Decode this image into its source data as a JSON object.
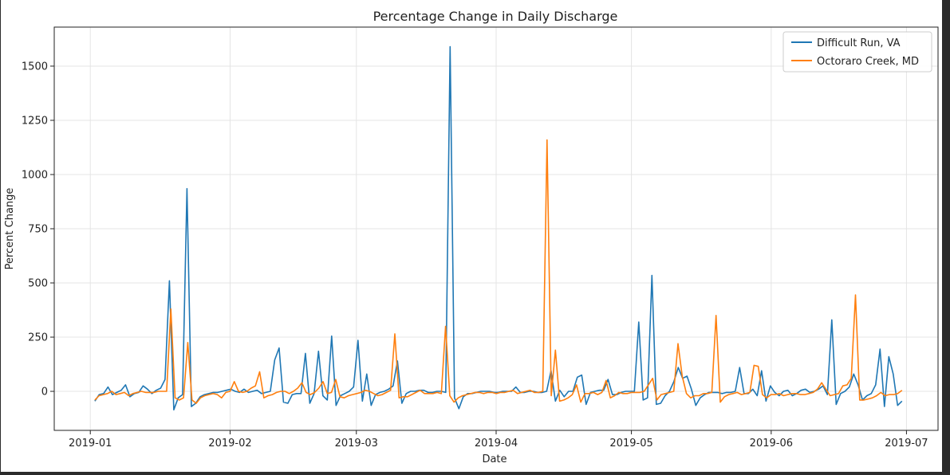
{
  "chart_data": {
    "type": "line",
    "title": "Percentage Change in Daily Discharge",
    "xlabel": "Date",
    "ylabel": "Percent Change",
    "x_start": "2019-01-02",
    "x_end": "2019-06-30",
    "xlim": [
      "2018-12-24",
      "2019-07-08"
    ],
    "ylim": [
      -180,
      1680
    ],
    "xticks": [
      "2019-01",
      "2019-02",
      "2019-03",
      "2019-04",
      "2019-05",
      "2019-06",
      "2019-07"
    ],
    "yticks": [
      0,
      250,
      500,
      750,
      1000,
      1250,
      1500
    ],
    "grid": true,
    "legend_position": "top-right",
    "series": [
      {
        "name": "Difficult Run, VA",
        "color": "#1f77b4",
        "values": [
          -45,
          -15,
          -10,
          20,
          -15,
          -5,
          5,
          30,
          -25,
          -10,
          -5,
          25,
          10,
          -10,
          5,
          15,
          55,
          510,
          -85,
          -30,
          -15,
          935,
          -70,
          -55,
          -25,
          -15,
          -10,
          -5,
          -5,
          0,
          5,
          10,
          0,
          -5,
          10,
          -5,
          0,
          5,
          -10,
          -5,
          0,
          145,
          200,
          -50,
          -55,
          -15,
          -10,
          -10,
          175,
          -55,
          -10,
          185,
          -20,
          -40,
          255,
          -65,
          -20,
          -10,
          0,
          20,
          235,
          -45,
          80,
          -65,
          -15,
          -5,
          0,
          10,
          25,
          140,
          -55,
          -10,
          0,
          0,
          5,
          5,
          -5,
          -5,
          0,
          0,
          -5,
          1590,
          -30,
          -80,
          -25,
          -10,
          -10,
          -5,
          0,
          0,
          0,
          -5,
          -5,
          0,
          0,
          0,
          20,
          -5,
          -5,
          0,
          0,
          -5,
          -5,
          0,
          95,
          -45,
          5,
          -25,
          0,
          0,
          65,
          75,
          -60,
          -5,
          0,
          5,
          5,
          55,
          -15,
          -15,
          -5,
          0,
          0,
          0,
          320,
          -40,
          -30,
          535,
          -60,
          -55,
          -20,
          0,
          45,
          110,
          60,
          70,
          10,
          -65,
          -30,
          -15,
          -5,
          -5,
          -5,
          -10,
          -5,
          -5,
          0,
          110,
          -10,
          -10,
          10,
          -20,
          95,
          -45,
          25,
          -5,
          -20,
          0,
          5,
          -20,
          -10,
          5,
          10,
          -5,
          0,
          10,
          25,
          -15,
          330,
          -60,
          -10,
          0,
          20,
          80,
          30,
          -40,
          -20,
          -10,
          30,
          195,
          -70,
          160,
          80,
          -65,
          -45
        ],
        "values_note": ""
      },
      {
        "name": "Octoraro Creek, MD",
        "color": "#ff7f0e",
        "values": [
          -40,
          -20,
          -15,
          -10,
          0,
          -15,
          -10,
          -5,
          -20,
          -10,
          -5,
          0,
          -5,
          -5,
          -5,
          0,
          0,
          0,
          380,
          -30,
          -40,
          -30,
          225,
          -40,
          -55,
          -30,
          -20,
          -15,
          -10,
          -15,
          -30,
          -5,
          0,
          45,
          0,
          -5,
          0,
          15,
          25,
          90,
          -30,
          -20,
          -15,
          -5,
          0,
          0,
          -10,
          0,
          15,
          40,
          -5,
          -15,
          -5,
          15,
          45,
          -10,
          -5,
          55,
          -25,
          -30,
          -20,
          -15,
          -10,
          -5,
          5,
          0,
          -10,
          -20,
          -15,
          -5,
          5,
          265,
          -30,
          -25,
          -25,
          -15,
          -5,
          5,
          -10,
          -10,
          -10,
          -5,
          -10,
          300,
          -20,
          -50,
          -30,
          -20,
          -15,
          -10,
          -5,
          -5,
          -10,
          -5,
          -5,
          -10,
          -5,
          -5,
          0,
          5,
          -10,
          -5,
          0,
          5,
          -5,
          -5,
          0,
          1160,
          -20,
          190,
          -45,
          -40,
          -30,
          -15,
          30,
          -50,
          -10,
          -10,
          -5,
          -15,
          -5,
          50,
          -30,
          -20,
          -5,
          -10,
          -10,
          -5,
          -5,
          -5,
          0,
          30,
          60,
          -40,
          -15,
          -10,
          -5,
          0,
          220,
          70,
          -10,
          -30,
          -20,
          -20,
          -10,
          -10,
          -5,
          350,
          -50,
          -25,
          -15,
          -10,
          -5,
          -15,
          -10,
          -5,
          120,
          115,
          -15,
          -30,
          -15,
          -15,
          -10,
          -20,
          -15,
          -10,
          -10,
          -15,
          -15,
          -10,
          -5,
          10,
          40,
          10,
          -20,
          -15,
          -10,
          25,
          30,
          60,
          445,
          -40,
          -40,
          -35,
          -30,
          -20,
          -5,
          -20,
          -15,
          -15,
          -10,
          5
        ]
      }
    ]
  }
}
